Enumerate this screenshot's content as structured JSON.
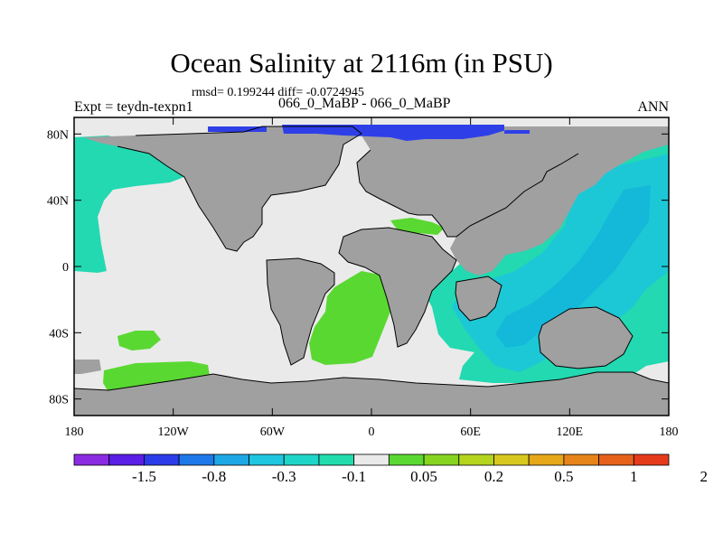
{
  "title": "Ocean Salinity at 2116m (in PSU)",
  "stats": "rmsd= 0.199244 diff= -0.0724945",
  "expt": "Expt = teydn-texpn1",
  "comparison": "066_0_MaBP - 066_0_MaBP",
  "season": "ANN",
  "axes": {
    "x_ticks": [
      {
        "value": -180,
        "label": "180"
      },
      {
        "value": -120,
        "label": "120W"
      },
      {
        "value": -60,
        "label": "60W"
      },
      {
        "value": 0,
        "label": "0"
      },
      {
        "value": 60,
        "label": "60E"
      },
      {
        "value": 120,
        "label": "120E"
      },
      {
        "value": 180,
        "label": "180"
      }
    ],
    "y_ticks": [
      {
        "value": 80,
        "label": "80N"
      },
      {
        "value": 40,
        "label": "40N"
      },
      {
        "value": 0,
        "label": "0"
      },
      {
        "value": -40,
        "label": "40S"
      },
      {
        "value": -80,
        "label": "80S"
      }
    ],
    "lon_range": [
      -180,
      180
    ],
    "lat_range": [
      -90,
      90
    ]
  },
  "colorbar": {
    "colors": [
      "#8b2be2",
      "#5a1ee6",
      "#2b3ce8",
      "#1f78e8",
      "#1ea8e6",
      "#1ec6e0",
      "#1ed6c8",
      "#22dcae",
      "#eaeaea",
      "#5ad832",
      "#86d420",
      "#b4d41e",
      "#d8c81e",
      "#e6a818",
      "#e6841a",
      "#e6621c",
      "#e63a1c"
    ],
    "labels": [
      "-1.5",
      "-0.8",
      "-0.3",
      "-0.1",
      "0.05",
      "0.2",
      "0.5",
      "1",
      "2"
    ]
  },
  "colors": {
    "land": "#a0a0a0",
    "neutral": "#eaeaea",
    "aqua": "#22d9b1",
    "cyan": "#1cc8d6",
    "cyan_deep": "#14b8d8",
    "blue": "#2e3fe8",
    "green": "#5ad832",
    "yellow": "#dcbc1c",
    "coast": "#000000"
  }
}
